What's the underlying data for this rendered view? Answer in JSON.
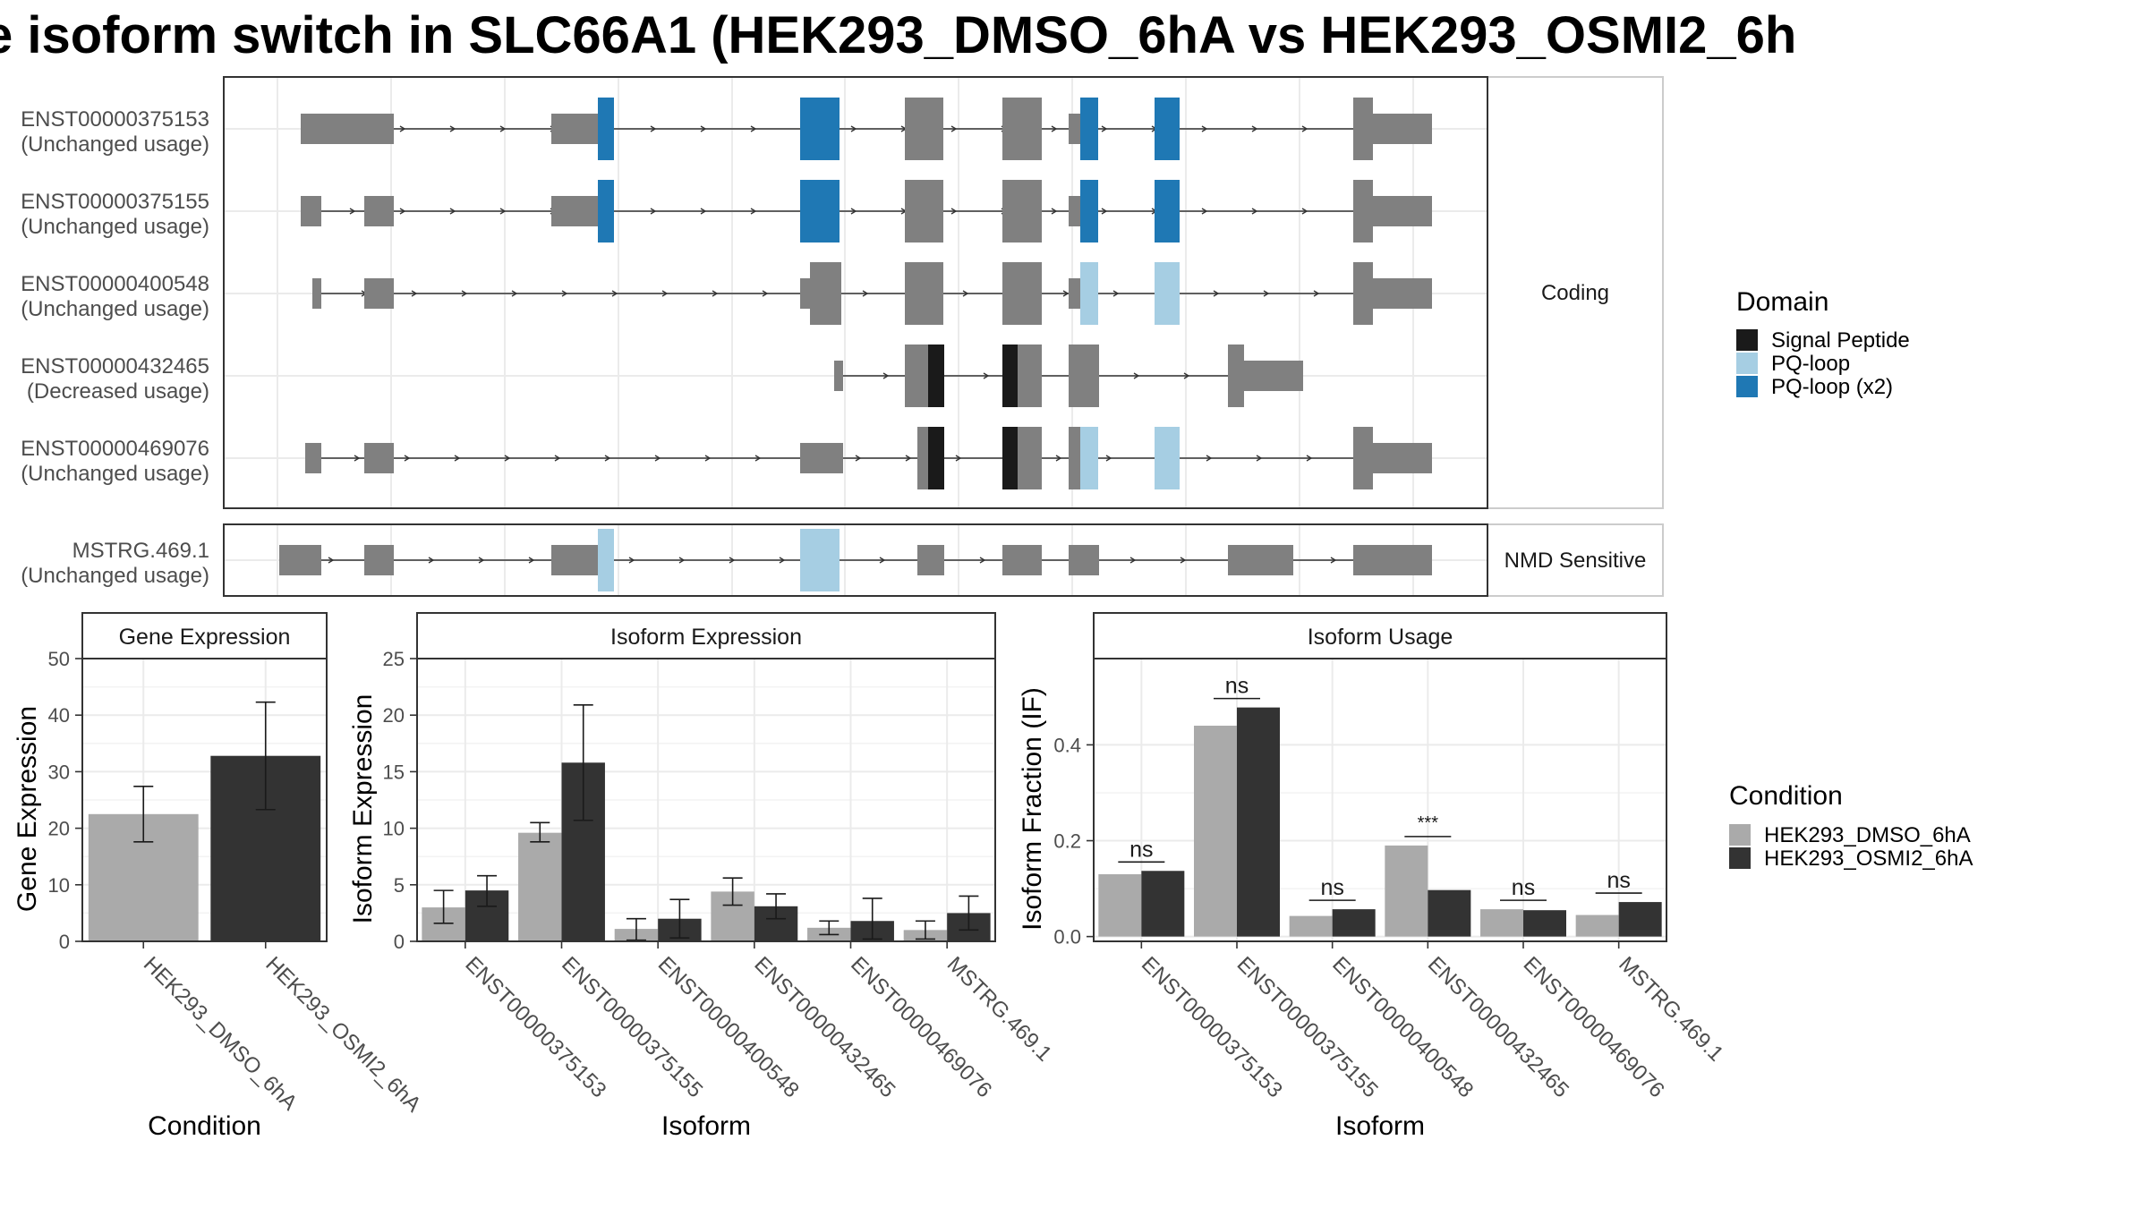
{
  "title": "e isoform switch in SLC66A1 (HEK293_DMSO_6hA vs HEK293_OSMI2_6h",
  "colors": {
    "exon": "#808080",
    "signal_peptide": "#1a1a1a",
    "pq_loop": "#a6cee3",
    "pq_loop_x2": "#1f78b4",
    "dmso": "#aaaaaa",
    "osmi2": "#333333",
    "grid": "#ebebeb",
    "panel_border": "#333333",
    "strip_fill": "#ffffff"
  },
  "structure": {
    "panels": [
      {
        "label": "Coding",
        "transcripts": [
          {
            "id": "ENST00000375153",
            "usage": "(Unchanged usage)"
          },
          {
            "id": "ENST00000375155",
            "usage": "(Unchanged usage)"
          },
          {
            "id": "ENST00000400548",
            "usage": "(Unchanged usage)"
          },
          {
            "id": "ENST00000432465",
            "usage": "(Decreased usage)"
          },
          {
            "id": "ENST00000469076",
            "usage": "(Unchanged usage)"
          }
        ]
      },
      {
        "label": "NMD Sensitive",
        "transcripts": [
          {
            "id": "MSTRG.469.1",
            "usage": "(Unchanged usage)"
          }
        ]
      }
    ]
  },
  "domain_legend": {
    "title": "Domain",
    "items": [
      {
        "label": "Signal Peptide",
        "color": "#1a1a1a"
      },
      {
        "label": "PQ-loop",
        "color": "#a6cee3"
      },
      {
        "label": "PQ-loop (x2)",
        "color": "#1f78b4"
      }
    ]
  },
  "condition_legend": {
    "title": "Condition",
    "items": [
      {
        "label": "HEK293_DMSO_6hA",
        "color": "#aaaaaa"
      },
      {
        "label": "HEK293_OSMI2_6hA",
        "color": "#333333"
      }
    ]
  },
  "chart_data": [
    {
      "type": "bar",
      "title": "Gene Expression",
      "xlabel": "Condition",
      "ylabel": "Gene Expression",
      "ylim": [
        0,
        50
      ],
      "yticks": [
        0,
        10,
        20,
        30,
        40,
        50
      ],
      "categories": [
        "HEK293_DMSO_6hA",
        "HEK293_OSMI2_6hA"
      ],
      "values": [
        22.5,
        32.8
      ],
      "error": [
        [
          17.6,
          27.4
        ],
        [
          23.3,
          42.3
        ]
      ]
    },
    {
      "type": "bar",
      "title": "Isoform Expression",
      "xlabel": "Isoform",
      "ylabel": "Isoform Expression",
      "ylim": [
        0,
        25
      ],
      "yticks": [
        0,
        5,
        10,
        15,
        20,
        25
      ],
      "categories": [
        "ENST00000375153",
        "ENST00000375155",
        "ENST00000400548",
        "ENST00000432465",
        "ENST00000469076",
        "MSTRG.469.1"
      ],
      "series": [
        {
          "name": "HEK293_DMSO_6hA",
          "values": [
            3.0,
            9.6,
            1.1,
            4.4,
            1.2,
            1.0
          ],
          "error": [
            [
              1.6,
              4.5
            ],
            [
              8.8,
              10.5
            ],
            [
              0.1,
              2.0
            ],
            [
              3.2,
              5.6
            ],
            [
              0.6,
              1.8
            ],
            [
              0.2,
              1.8
            ]
          ]
        },
        {
          "name": "HEK293_OSMI2_6hA",
          "values": [
            4.5,
            15.8,
            2.0,
            3.1,
            1.8,
            2.5
          ],
          "error": [
            [
              3.1,
              5.8
            ],
            [
              10.7,
              20.9
            ],
            [
              0.3,
              3.7
            ],
            [
              2.0,
              4.2
            ],
            [
              0.2,
              3.8
            ],
            [
              1.0,
              4.0
            ]
          ]
        }
      ]
    },
    {
      "type": "bar",
      "title": "Isoform Usage",
      "xlabel": "Isoform",
      "ylabel": "Isoform Fraction (IF)",
      "ylim": [
        -0.01,
        0.58
      ],
      "yticks": [
        0.0,
        0.2,
        0.4
      ],
      "ytick_labels": [
        "0.0",
        "0.2",
        "0.4"
      ],
      "categories": [
        "ENST00000375153",
        "ENST00000375155",
        "ENST00000400548",
        "ENST00000432465",
        "ENST00000469076",
        "MSTRG.469.1"
      ],
      "series": [
        {
          "name": "HEK293_DMSO_6hA",
          "values": [
            0.13,
            0.44,
            0.043,
            0.19,
            0.057,
            0.045
          ]
        },
        {
          "name": "HEK293_OSMI2_6hA",
          "values": [
            0.137,
            0.478,
            0.057,
            0.097,
            0.055,
            0.072
          ]
        }
      ],
      "significance": [
        "ns",
        "ns",
        "ns",
        "***",
        "ns",
        "ns"
      ]
    }
  ]
}
